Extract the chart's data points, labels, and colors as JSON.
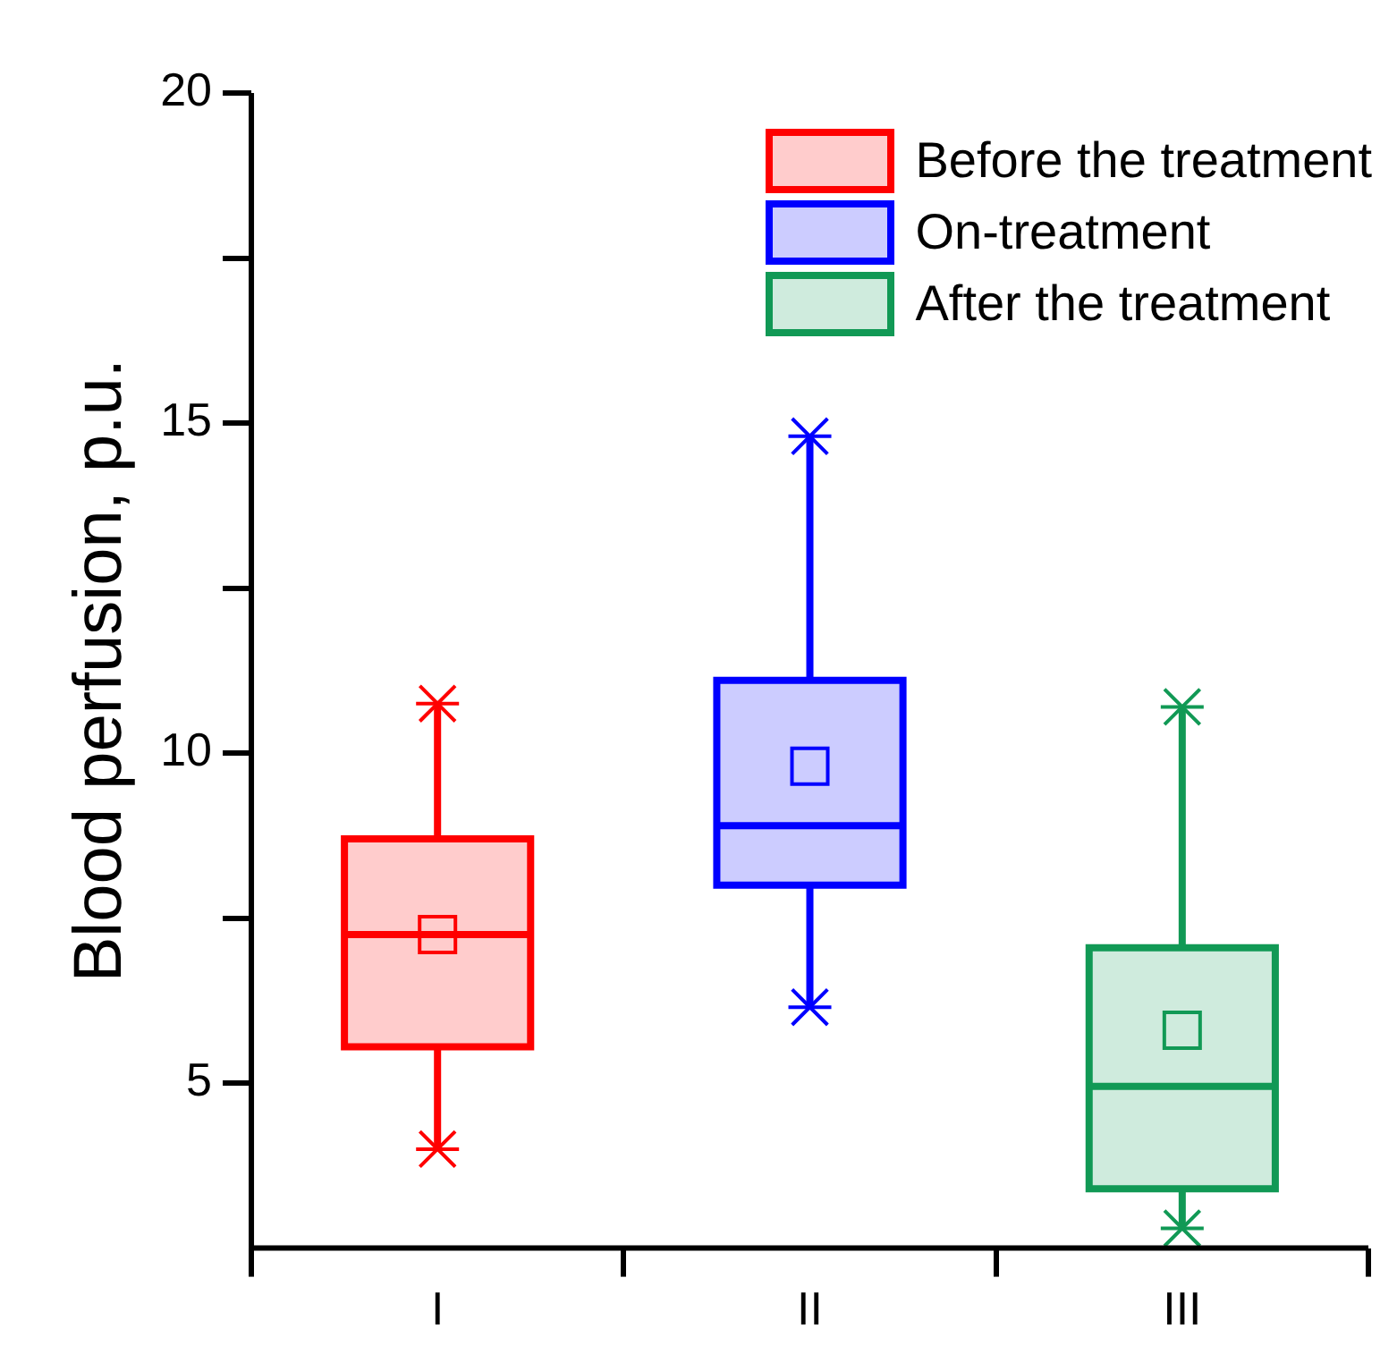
{
  "chart_data": {
    "type": "box",
    "ylabel": "Blood perfusion, p.u.",
    "categories": [
      "I",
      "II",
      "III"
    ],
    "ylim": [
      2.5,
      20
    ],
    "yticks": [
      5,
      {
        "value": 7.5,
        "label": null
      },
      10,
      {
        "value": 12.5,
        "label": null
      },
      15,
      {
        "value": 17.5,
        "label": null
      },
      20
    ],
    "grid": false,
    "legend": "top right",
    "marker": "square",
    "series": [
      {
        "name": "Before the treatment",
        "color": "#ff0000",
        "boxes": [
          {
            "low": 4.0,
            "q1": 5.55,
            "median": 7.25,
            "q3": 8.7,
            "high": 10.75,
            "mean": 7.25
          },
          null,
          null
        ]
      },
      {
        "name": "On-treatment",
        "color": "#0000ff",
        "boxes": [
          null,
          {
            "low": 6.15,
            "q1": 8.0,
            "median": 8.9,
            "q3": 11.1,
            "high": 14.8,
            "mean": 9.8
          },
          null
        ]
      },
      {
        "name": "After the treatment",
        "color": "#119955",
        "boxes": [
          null,
          null,
          {
            "low": 2.8,
            "q1": 3.4,
            "median": 4.95,
            "q3": 7.05,
            "high": 10.7,
            "mean": 5.8
          }
        ]
      },
      {
        "type": "scatter",
        "marker": "cross",
        "color": "#ff0000",
        "x": [
          "I",
          "I"
        ],
        "values": [
          10.75,
          4.0
        ]
      },
      {
        "type": "scatter",
        "marker": "cross",
        "color": "#0000ff",
        "x": [
          "II",
          "II"
        ],
        "values": [
          14.8,
          6.15
        ]
      },
      {
        "type": "scatter",
        "marker": "cross",
        "color": "#119955",
        "x": [
          "III",
          "III"
        ],
        "values": [
          10.7,
          2.8
        ]
      }
    ]
  }
}
